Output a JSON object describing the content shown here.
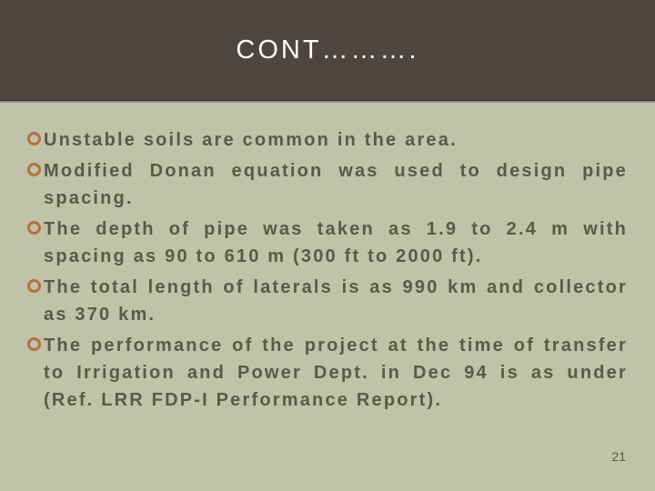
{
  "slide": {
    "title": "CONT……….",
    "background_color": "#c0c3a7",
    "header_color": "#50453e",
    "title_color": "#ffffff",
    "title_fontsize": 29,
    "title_letterspacing": 3,
    "bullet_ring_color": "#b57041",
    "text_color": "#595a48",
    "body_fontsize": 20,
    "body_letterspacing": 2.2,
    "bullets": [
      "Unstable soils are common in the area.",
      "Modified Donan equation was used to design pipe spacing.",
      "The depth of pipe was taken as 1.9 to 2.4 m with spacing as 90 to 610 m (300 ft to 2000 ft).",
      "The total length of laterals is as 990 km and collector as 370 km.",
      "The performance of the project at the time of transfer to Irrigation and Power Dept. in Dec 94 is as under (Ref. LRR FDP-I Performance Report)."
    ],
    "page_number": "21"
  }
}
